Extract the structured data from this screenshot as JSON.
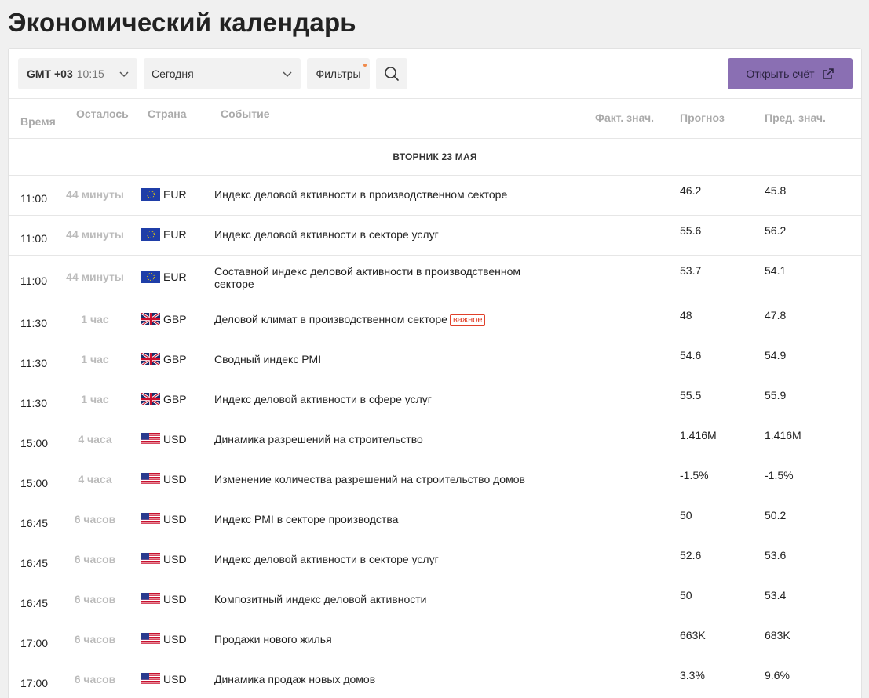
{
  "page": {
    "title": "Экономический календарь"
  },
  "toolbar": {
    "timezone_label": "GMT +03",
    "timezone_time": "10:15",
    "date_value": "Сегодня",
    "filters_label": "Фильтры",
    "open_account_label": "Открыть счёт"
  },
  "columns": {
    "time": "Время",
    "remaining": "Осталось",
    "country": "Страна",
    "event": "Событие",
    "actual": "Факт. знач.",
    "forecast": "Прогноз",
    "previous": "Пред. знач."
  },
  "day_label": "ВТОРНИК 23 МАЯ",
  "rows": [
    {
      "time": "11:00",
      "remaining": "44 минуты",
      "flag": "eu-flag-icon",
      "currency": "EUR",
      "event": "Индекс деловой активности в производственном секторе",
      "forecast": "46.2",
      "previous": "45.8"
    },
    {
      "time": "11:00",
      "remaining": "44 минуты",
      "flag": "eu-flag-icon",
      "currency": "EUR",
      "event": "Индекс деловой активности в секторе услуг",
      "forecast": "55.6",
      "previous": "56.2"
    },
    {
      "time": "11:00",
      "remaining": "44 минуты",
      "flag": "eu-flag-icon",
      "currency": "EUR",
      "event": "Составной индекс деловой активности в производственном секторе",
      "forecast": "53.7",
      "previous": "54.1"
    },
    {
      "time": "11:30",
      "remaining": "1 час",
      "flag": "uk-flag-icon",
      "currency": "GBP",
      "event": "Деловой климат в производственном секторе",
      "badge": "важное",
      "forecast": "48",
      "previous": "47.8"
    },
    {
      "time": "11:30",
      "remaining": "1 час",
      "flag": "uk-flag-icon",
      "currency": "GBP",
      "event": "Сводный индекс PMI",
      "forecast": "54.6",
      "previous": "54.9"
    },
    {
      "time": "11:30",
      "remaining": "1 час",
      "flag": "uk-flag-icon",
      "currency": "GBP",
      "event": "Индекс деловой активности в сфере услуг",
      "forecast": "55.5",
      "previous": "55.9"
    },
    {
      "time": "15:00",
      "remaining": "4 часа",
      "flag": "us-flag-icon",
      "currency": "USD",
      "event": "Динамика разрешений на строительство",
      "forecast": "1.416M",
      "previous": "1.416M"
    },
    {
      "time": "15:00",
      "remaining": "4 часа",
      "flag": "us-flag-icon",
      "currency": "USD",
      "event": "Изменение количества разрешений на строительство домов",
      "forecast": "-1.5%",
      "previous": "-1.5%"
    },
    {
      "time": "16:45",
      "remaining": "6 часов",
      "flag": "us-flag-icon",
      "currency": "USD",
      "event": "Индекс PMI в секторе производства",
      "forecast": "50",
      "previous": "50.2"
    },
    {
      "time": "16:45",
      "remaining": "6 часов",
      "flag": "us-flag-icon",
      "currency": "USD",
      "event": "Индекс деловой активности в секторе услуг",
      "forecast": "52.6",
      "previous": "53.6"
    },
    {
      "time": "16:45",
      "remaining": "6 часов",
      "flag": "us-flag-icon",
      "currency": "USD",
      "event": "Композитный индекс деловой активности",
      "forecast": "50",
      "previous": "53.4"
    },
    {
      "time": "17:00",
      "remaining": "6 часов",
      "flag": "us-flag-icon",
      "currency": "USD",
      "event": "Продажи нового жилья",
      "forecast": "663K",
      "previous": "683K"
    },
    {
      "time": "17:00",
      "remaining": "6 часов",
      "flag": "us-flag-icon",
      "currency": "USD",
      "event": "Динамика продаж новых домов",
      "forecast": "3.3%",
      "previous": "9.6%"
    }
  ],
  "colors": {
    "accent_button": "#8a6fb3",
    "important_badge": "#e0402a",
    "filter_indicator": "#f08a4b"
  }
}
